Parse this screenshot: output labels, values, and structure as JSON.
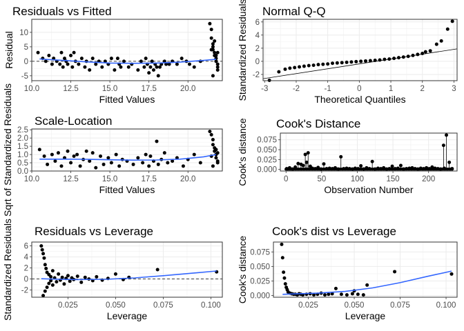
{
  "chart_data": [
    {
      "type": "scatter",
      "title": "Residuals vs Fitted",
      "xlabel": "Fitted Values",
      "ylabel": "Residual",
      "xlim": [
        10.0,
        22.2
      ],
      "ylim": [
        -6.7,
        14.5
      ],
      "xticks": [
        10.0,
        12.5,
        15.0,
        17.5,
        20.0
      ],
      "xtick_labels": [
        "10.0",
        "12.5",
        "15.0",
        "17.5",
        "20.0"
      ],
      "yticks": [
        -5,
        0,
        5,
        10
      ],
      "ytick_labels": [
        "-5",
        "0",
        "5",
        "10"
      ],
      "reference_line": {
        "style": "dashed",
        "type": "hline",
        "y": 0
      },
      "smooth": {
        "color": "#3366ff",
        "x": [
          10.5,
          12,
          13.5,
          15,
          16.5,
          18,
          19.5,
          21,
          21.8
        ],
        "y": [
          0.8,
          0.3,
          -0.2,
          -0.6,
          -0.7,
          -0.6,
          -0.3,
          0.3,
          0.7
        ]
      },
      "points": {
        "x": [
          10.4,
          10.7,
          10.9,
          11.1,
          11.3,
          11.4,
          11.6,
          11.8,
          11.9,
          12.0,
          12.1,
          12.2,
          12.3,
          12.5,
          12.6,
          12.7,
          12.8,
          13.0,
          13.2,
          13.4,
          13.5,
          13.7,
          13.9,
          14.1,
          14.3,
          14.5,
          14.7,
          14.9,
          15.1,
          15.3,
          15.5,
          15.6,
          15.7,
          15.9,
          16.2,
          16.4,
          16.8,
          17.0,
          17.2,
          17.3,
          17.4,
          17.5,
          17.6,
          17.7,
          17.8,
          17.9,
          18.0,
          18.1,
          18.2,
          18.3,
          18.5,
          18.6,
          18.8,
          19.0,
          19.3,
          19.6,
          19.9,
          20.1,
          20.4,
          20.8,
          21.4,
          21.5,
          21.5,
          21.6,
          21.6,
          21.7,
          21.7,
          21.8,
          21.8,
          21.9,
          21.9,
          21.9,
          21.6,
          21.8,
          21.5,
          21.9,
          21.7,
          21.6
        ],
        "y": [
          3,
          1,
          0,
          2,
          -1,
          1,
          0,
          -1,
          3,
          -2,
          1,
          0,
          -1,
          2,
          -2,
          3,
          0,
          -1,
          1,
          -2,
          0,
          -3,
          1,
          -1,
          0,
          -2,
          0,
          -1,
          1,
          -3,
          1,
          -1,
          -2,
          0,
          -2,
          -1,
          -3,
          0,
          -2,
          1,
          -1,
          -4,
          -2,
          0,
          -3,
          -1,
          -2,
          -5,
          -2,
          -1,
          0,
          -1,
          -1,
          0,
          -1,
          1,
          0,
          -1,
          -2,
          0,
          13,
          11,
          8,
          6,
          5,
          3,
          2,
          1,
          0,
          -1,
          -2,
          -3,
          -5,
          2,
          4,
          3,
          7,
          4
        ]
      }
    },
    {
      "type": "scatter",
      "title": "Normal Q-Q",
      "xlabel": "Theoretical Quantiles",
      "ylabel": "Standardized Residuals",
      "xlim": [
        -3.05,
        3.1
      ],
      "ylim": [
        -2.95,
        6.4
      ],
      "xticks": [
        -3,
        -2,
        -1,
        0,
        1,
        2,
        3
      ],
      "xtick_labels": [
        "-3",
        "-2",
        "-1",
        "0",
        "1",
        "2",
        "3"
      ],
      "yticks": [
        -2,
        0,
        2,
        4,
        6
      ],
      "ytick_labels": [
        "-2",
        "0",
        "2",
        "4",
        "6"
      ],
      "reference_line": {
        "type": "line",
        "x": [
          -3.05,
          3.1
        ],
        "y": [
          -2.65,
          1.9
        ]
      },
      "points": {
        "x": [
          -2.85,
          -2.55,
          -2.35,
          -2.2,
          -2.05,
          -1.9,
          -1.75,
          -1.6,
          -1.45,
          -1.3,
          -1.15,
          -1.0,
          -0.85,
          -0.7,
          -0.55,
          -0.4,
          -0.25,
          -0.1,
          0.05,
          0.2,
          0.35,
          0.5,
          0.65,
          0.8,
          0.95,
          1.1,
          1.25,
          1.4,
          1.55,
          1.7,
          1.85,
          2.0,
          2.1,
          2.25,
          2.45,
          2.6,
          2.8,
          2.95
        ],
        "y": [
          -2.9,
          -1.6,
          -1.2,
          -1.05,
          -0.95,
          -0.85,
          -0.75,
          -0.65,
          -0.6,
          -0.5,
          -0.45,
          -0.4,
          -0.3,
          -0.25,
          -0.2,
          -0.15,
          -0.1,
          -0.05,
          0.0,
          0.05,
          0.1,
          0.15,
          0.2,
          0.3,
          0.35,
          0.45,
          0.55,
          0.65,
          0.75,
          0.9,
          1.05,
          1.2,
          1.45,
          1.6,
          2.6,
          3.1,
          4.9,
          6.1
        ]
      }
    },
    {
      "type": "scatter",
      "title": "Scale-Location",
      "xlabel": "Fitted Values",
      "ylabel": "Sqrt of Standardized Residuals",
      "xlim": [
        10.0,
        22.2
      ],
      "ylim": [
        0.0,
        2.55
      ],
      "xticks": [
        10.0,
        12.5,
        15.0,
        17.5,
        20.0
      ],
      "xtick_labels": [
        "10.0",
        "12.5",
        "15.0",
        "17.5",
        "20.0"
      ],
      "yticks": [
        0.0,
        0.5,
        1.0,
        1.5,
        2.0,
        2.5
      ],
      "ytick_labels": [
        "0.0",
        "0.5",
        "1.0",
        "1.5",
        "2.0",
        "2.5"
      ],
      "smooth": {
        "color": "#3366ff",
        "x": [
          10.5,
          12,
          13.5,
          15,
          16.5,
          18,
          19.5,
          21,
          21.8
        ],
        "y": [
          0.72,
          0.72,
          0.71,
          0.68,
          0.66,
          0.67,
          0.72,
          0.86,
          1.0
        ]
      },
      "points": {
        "x": [
          10.5,
          10.8,
          11.0,
          11.3,
          11.5,
          11.7,
          11.9,
          12.1,
          12.3,
          12.5,
          12.7,
          12.9,
          13.1,
          13.3,
          13.5,
          13.7,
          13.9,
          14.1,
          14.4,
          14.6,
          14.9,
          15.1,
          15.4,
          15.6,
          15.8,
          16.1,
          16.5,
          16.8,
          17.1,
          17.3,
          17.5,
          17.6,
          17.8,
          18.0,
          18.1,
          18.3,
          18.5,
          18.7,
          19.0,
          19.3,
          19.7,
          20.0,
          20.4,
          20.8,
          21.4,
          21.5,
          21.6,
          21.6,
          21.7,
          21.7,
          21.8,
          21.8,
          21.9,
          21.9,
          21.6,
          21.8,
          21.5,
          21.9
        ],
        "y": [
          1.3,
          0.9,
          0.4,
          1.0,
          0.6,
          1.1,
          0.3,
          0.8,
          1.2,
          0.5,
          0.9,
          1.0,
          0.3,
          0.7,
          1.2,
          0.6,
          1.1,
          0.2,
          0.9,
          0.4,
          0.8,
          0.5,
          1.0,
          0.3,
          0.7,
          0.6,
          0.4,
          0.8,
          0.5,
          1.0,
          0.3,
          0.9,
          0.6,
          1.8,
          0.4,
          0.7,
          1.1,
          0.5,
          0.6,
          0.8,
          0.3,
          0.7,
          1.0,
          0.5,
          2.4,
          2.2,
          1.9,
          1.6,
          1.4,
          1.2,
          1.0,
          0.8,
          0.6,
          0.5,
          0.3,
          1.3,
          0.9,
          1.1
        ]
      }
    },
    {
      "type": "scatter",
      "title": "Cook's Distance",
      "xlabel": "Observation Number",
      "ylabel": "Cook's distance",
      "xlim": [
        -8,
        240
      ],
      "ylim": [
        -0.004,
        0.092
      ],
      "xticks": [
        0,
        50,
        100,
        150,
        200
      ],
      "xtick_labels": [
        "0",
        "50",
        "100",
        "150",
        "200"
      ],
      "yticks": [
        0.0,
        0.025,
        0.05,
        0.075
      ],
      "ytick_labels": [
        "0.000",
        "0.025",
        "0.050",
        "0.075"
      ],
      "stems": true,
      "points": {
        "x": [
          1,
          5,
          9,
          13,
          17,
          21,
          24,
          27,
          29,
          31,
          34,
          37,
          41,
          45,
          49,
          53,
          57,
          61,
          65,
          69,
          73,
          77,
          81,
          85,
          89,
          93,
          97,
          101,
          105,
          109,
          113,
          117,
          121,
          125,
          129,
          133,
          137,
          141,
          145,
          149,
          153,
          157,
          161,
          165,
          169,
          173,
          177,
          181,
          185,
          189,
          193,
          197,
          201,
          205,
          209,
          213,
          217,
          221,
          222,
          225,
          229,
          233
        ],
        "y": [
          0.002,
          0.004,
          0.001,
          0.006,
          0.015,
          0.013,
          0.01,
          0.038,
          0.018,
          0.042,
          0.008,
          0.003,
          0.002,
          0.005,
          0.001,
          0.014,
          0.002,
          0.003,
          0.002,
          0.004,
          0.001,
          0.032,
          0.002,
          0.003,
          0.002,
          0.001,
          0.003,
          0.002,
          0.009,
          0.001,
          0.004,
          0.002,
          0.02,
          0.001,
          0.003,
          0.002,
          0.004,
          0.001,
          0.002,
          0.008,
          0.002,
          0.003,
          0.01,
          0.001,
          0.002,
          0.003,
          0.004,
          0.002,
          0.001,
          0.003,
          0.002,
          0.004,
          0.002,
          0.006,
          0.003,
          0.002,
          0.001,
          0.061,
          0.003,
          0.087,
          0.018,
          0.002
        ]
      }
    },
    {
      "type": "scatter",
      "title": "Residuals vs Leverage",
      "xlabel": "Leverage",
      "ylabel": "Standardized Residuals",
      "xlim": [
        0.006,
        0.106
      ],
      "ylim": [
        -3.3,
        6.7
      ],
      "xticks": [
        0.025,
        0.05,
        0.075,
        0.1
      ],
      "xtick_labels": [
        "0.025",
        "0.050",
        "0.075",
        "0.100"
      ],
      "yticks": [
        -2,
        0,
        2,
        4,
        6
      ],
      "ytick_labels": [
        "-2",
        "0",
        "2",
        "4",
        "6"
      ],
      "reference_line": {
        "style": "dashed",
        "type": "hline",
        "y": 0
      },
      "smooth": {
        "color": "#3366ff",
        "x": [
          0.011,
          0.02,
          0.03,
          0.045,
          0.06,
          0.075,
          0.09,
          0.103
        ],
        "y": [
          0.05,
          -0.05,
          -0.1,
          -0.05,
          0.2,
          0.6,
          1.05,
          1.45
        ]
      },
      "points": {
        "x": [
          0.011,
          0.0115,
          0.012,
          0.012,
          0.0125,
          0.013,
          0.013,
          0.0135,
          0.014,
          0.014,
          0.015,
          0.015,
          0.016,
          0.016,
          0.017,
          0.017,
          0.018,
          0.019,
          0.02,
          0.021,
          0.022,
          0.023,
          0.024,
          0.025,
          0.026,
          0.027,
          0.028,
          0.03,
          0.032,
          0.034,
          0.036,
          0.038,
          0.04,
          0.043,
          0.046,
          0.05,
          0.054,
          0.057,
          0.072,
          0.103
        ],
        "y": [
          6.0,
          5.3,
          4.6,
          -3.0,
          3.8,
          2.6,
          -2.2,
          1.9,
          1.2,
          -1.5,
          0.8,
          -0.8,
          0.4,
          -0.3,
          1.5,
          -1.1,
          0.2,
          -0.5,
          0.9,
          -0.2,
          0.3,
          -0.9,
          0.1,
          0.6,
          -0.4,
          0.2,
          -0.1,
          0.5,
          -0.6,
          0.3,
          0.0,
          -0.3,
          0.4,
          -0.2,
          0.1,
          0.9,
          -0.1,
          0.3,
          1.7,
          1.3
        ]
      }
    },
    {
      "type": "scatter",
      "title": "Cook's dist vs Leverage",
      "xlabel": "Leverage",
      "ylabel": "Cook's distance",
      "xlim": [
        0.006,
        0.106
      ],
      "ylim": [
        -0.003,
        0.092
      ],
      "xticks": [
        0.025,
        0.05,
        0.075,
        0.1
      ],
      "xtick_labels": [
        "0.025",
        "0.050",
        "0.075",
        "0.100"
      ],
      "yticks": [
        0.0,
        0.025,
        0.05,
        0.075
      ],
      "ytick_labels": [
        "0.000",
        "0.025",
        "0.050",
        "0.075"
      ],
      "smooth": {
        "color": "#3366ff",
        "x": [
          0.011,
          0.02,
          0.03,
          0.045,
          0.06,
          0.075,
          0.09,
          0.103
        ],
        "y": [
          0.002,
          0.003,
          0.004,
          0.007,
          0.013,
          0.022,
          0.033,
          0.042
        ]
      },
      "points": {
        "x": [
          0.0105,
          0.011,
          0.0115,
          0.012,
          0.0125,
          0.013,
          0.0135,
          0.014,
          0.015,
          0.016,
          0.017,
          0.018,
          0.019,
          0.02,
          0.021,
          0.022,
          0.024,
          0.026,
          0.028,
          0.03,
          0.032,
          0.034,
          0.036,
          0.038,
          0.04,
          0.043,
          0.046,
          0.049,
          0.05,
          0.052,
          0.055,
          0.057,
          0.072,
          0.103
        ],
        "y": [
          0.088,
          0.065,
          0.04,
          0.03,
          0.02,
          0.014,
          0.01,
          0.006,
          0.004,
          0.003,
          0.002,
          0.002,
          0.001,
          0.003,
          0.002,
          0.001,
          0.002,
          0.003,
          0.001,
          0.002,
          0.004,
          0.001,
          0.002,
          0.003,
          0.012,
          0.002,
          0.001,
          0.003,
          0.008,
          0.002,
          0.001,
          0.018,
          0.041,
          0.037
        ]
      }
    }
  ]
}
